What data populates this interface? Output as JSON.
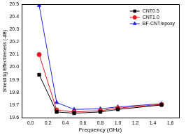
{
  "chart_data": {
    "type": "line",
    "x_label": "Frequency (GHz)",
    "y_label": "Shielding Effectiveness (-dB)",
    "x": [
      0.1,
      0.3,
      0.5,
      0.8,
      1.0,
      1.5
    ],
    "series": [
      {
        "name": "CNT0.5",
        "color": "#000000",
        "marker": "square",
        "values": [
          19.94,
          19.645,
          19.635,
          19.645,
          19.665,
          19.7
        ]
      },
      {
        "name": "CNT1.0",
        "color": "#e8141c",
        "marker": "circle",
        "values": [
          20.1,
          19.66,
          19.645,
          19.655,
          19.675,
          19.705
        ]
      },
      {
        "name": "BF-CNT/epoxy",
        "color": "#2323d8",
        "marker": "triangle",
        "values": [
          20.49,
          19.72,
          19.665,
          19.67,
          19.685,
          19.71
        ]
      }
    ],
    "xlim": [
      -0.1,
      1.7
    ],
    "xticks": [
      {
        "value": 0,
        "label": "0.0"
      },
      0.2,
      0.4,
      0.6,
      0.8,
      {
        "value": 1,
        "label": "1.0"
      },
      1.2,
      1.4,
      1.6
    ],
    "ylim": [
      19.6,
      20.5
    ],
    "yticks": [
      19.6,
      19.7,
      19.8,
      19.9,
      {
        "value": 20,
        "label": "20.0"
      },
      20.1,
      20.2,
      20.3,
      20.4,
      20.5
    ],
    "grid": false,
    "legend": "upper right"
  }
}
